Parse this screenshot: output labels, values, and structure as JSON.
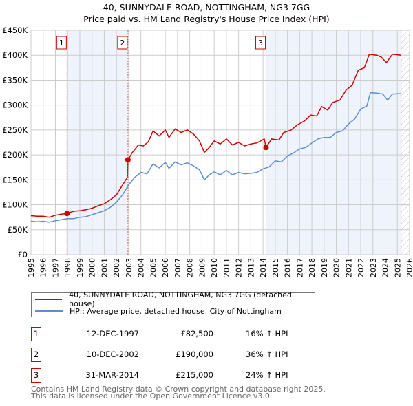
{
  "title_line1": "40, SUNNYDALE ROAD, NOTTINGHAM, NG3 7GG",
  "title_line2": "Price paid vs. HM Land Registry's House Price Index (HPI)",
  "colors": {
    "property": "#cc0000",
    "hpi": "#5b8fd0",
    "shade": "#eef3fc",
    "grid": "#cccccc"
  },
  "chart_data": {
    "type": "line",
    "xlim": [
      1995,
      2026
    ],
    "ylim": [
      0,
      450000
    ],
    "x_ticks": [
      "1995",
      "1996",
      "1997",
      "1998",
      "1999",
      "2000",
      "2001",
      "2002",
      "2003",
      "2004",
      "2005",
      "2006",
      "2007",
      "2008",
      "2009",
      "2010",
      "2011",
      "2012",
      "2013",
      "2014",
      "2015",
      "2016",
      "2017",
      "2018",
      "2019",
      "2020",
      "2021",
      "2022",
      "2023",
      "2024",
      "2025",
      "2026"
    ],
    "y_ticks": [
      {
        "v": 0,
        "label": "£0"
      },
      {
        "v": 50000,
        "label": "£50K"
      },
      {
        "v": 100000,
        "label": "£100K"
      },
      {
        "v": 150000,
        "label": "£150K"
      },
      {
        "v": 200000,
        "label": "£200K"
      },
      {
        "v": 250000,
        "label": "£250K"
      },
      {
        "v": 300000,
        "label": "£300K"
      },
      {
        "v": 350000,
        "label": "£350K"
      },
      {
        "v": 400000,
        "label": "£400K"
      },
      {
        "v": 450000,
        "label": "£450K"
      }
    ],
    "grid": true,
    "shaded_ranges": [
      [
        1997.95,
        2002.94
      ],
      [
        2014.25,
        2025.3
      ]
    ],
    "hatched_from": 2025.3,
    "series": [
      {
        "name": "40, SUNNYDALE ROAD, NOTTINGHAM, NG3 7GG (detached house)",
        "color": "#cc0000",
        "points": [
          [
            1995,
            78000
          ],
          [
            1995.5,
            77000
          ],
          [
            1996,
            77000
          ],
          [
            1996.5,
            75000
          ],
          [
            1997,
            79000
          ],
          [
            1997.5,
            81000
          ],
          [
            1997.95,
            82500
          ],
          [
            1998.5,
            87000
          ],
          [
            1999,
            88000
          ],
          [
            1999.5,
            90000
          ],
          [
            2000,
            93000
          ],
          [
            2000.5,
            98000
          ],
          [
            2001,
            102000
          ],
          [
            2001.5,
            110000
          ],
          [
            2002,
            120000
          ],
          [
            2002.5,
            140000
          ],
          [
            2002.9,
            155000
          ],
          [
            2002.94,
            190000
          ],
          [
            2003.3,
            205000
          ],
          [
            2003.8,
            220000
          ],
          [
            2004.2,
            218000
          ],
          [
            2004.6,
            226000
          ],
          [
            2005,
            248000
          ],
          [
            2005.5,
            238000
          ],
          [
            2006,
            250000
          ],
          [
            2006.3,
            235000
          ],
          [
            2006.8,
            252000
          ],
          [
            2007.3,
            245000
          ],
          [
            2007.8,
            250000
          ],
          [
            2008.3,
            242000
          ],
          [
            2008.8,
            228000
          ],
          [
            2009.2,
            205000
          ],
          [
            2009.6,
            215000
          ],
          [
            2010,
            228000
          ],
          [
            2010.5,
            222000
          ],
          [
            2011,
            232000
          ],
          [
            2011.5,
            220000
          ],
          [
            2012,
            225000
          ],
          [
            2012.5,
            218000
          ],
          [
            2013,
            222000
          ],
          [
            2013.5,
            224000
          ],
          [
            2014.1,
            232000
          ],
          [
            2014.25,
            215000
          ],
          [
            2014.7,
            232000
          ],
          [
            2015.3,
            230000
          ],
          [
            2015.7,
            245000
          ],
          [
            2016.3,
            250000
          ],
          [
            2016.8,
            260000
          ],
          [
            2017.4,
            268000
          ],
          [
            2017.9,
            280000
          ],
          [
            2018.4,
            278000
          ],
          [
            2018.8,
            297000
          ],
          [
            2019.3,
            290000
          ],
          [
            2019.7,
            305000
          ],
          [
            2020.3,
            310000
          ],
          [
            2020.8,
            330000
          ],
          [
            2021.3,
            340000
          ],
          [
            2021.8,
            370000
          ],
          [
            2022.3,
            375000
          ],
          [
            2022.7,
            402000
          ],
          [
            2023.3,
            400000
          ],
          [
            2023.7,
            396000
          ],
          [
            2024.1,
            385000
          ],
          [
            2024.6,
            402000
          ],
          [
            2025.3,
            400000
          ]
        ]
      },
      {
        "name": "HPI: Average price, detached house, City of Nottingham",
        "color": "#5b8fd0",
        "points": [
          [
            1995,
            67000
          ],
          [
            1995.5,
            66000
          ],
          [
            1996,
            67000
          ],
          [
            1996.5,
            65000
          ],
          [
            1997,
            68000
          ],
          [
            1997.5,
            70000
          ],
          [
            1998,
            72000
          ],
          [
            1998.5,
            72000
          ],
          [
            1999,
            75000
          ],
          [
            1999.5,
            76000
          ],
          [
            2000,
            80000
          ],
          [
            2000.5,
            84000
          ],
          [
            2001,
            88000
          ],
          [
            2001.5,
            95000
          ],
          [
            2002,
            105000
          ],
          [
            2002.5,
            120000
          ],
          [
            2003,
            140000
          ],
          [
            2003.5,
            155000
          ],
          [
            2004,
            165000
          ],
          [
            2004.5,
            162000
          ],
          [
            2005,
            182000
          ],
          [
            2005.5,
            174000
          ],
          [
            2006,
            185000
          ],
          [
            2006.3,
            173000
          ],
          [
            2006.8,
            186000
          ],
          [
            2007.3,
            180000
          ],
          [
            2007.8,
            184000
          ],
          [
            2008.3,
            178000
          ],
          [
            2008.8,
            170000
          ],
          [
            2009.2,
            150000
          ],
          [
            2009.6,
            160000
          ],
          [
            2010,
            166000
          ],
          [
            2010.5,
            160000
          ],
          [
            2011,
            169000
          ],
          [
            2011.5,
            160000
          ],
          [
            2012,
            165000
          ],
          [
            2012.5,
            162000
          ],
          [
            2013,
            163000
          ],
          [
            2013.5,
            165000
          ],
          [
            2014,
            172000
          ],
          [
            2014.5,
            176000
          ],
          [
            2015,
            188000
          ],
          [
            2015.5,
            186000
          ],
          [
            2016,
            198000
          ],
          [
            2016.5,
            204000
          ],
          [
            2017,
            212000
          ],
          [
            2017.5,
            215000
          ],
          [
            2018,
            224000
          ],
          [
            2018.5,
            232000
          ],
          [
            2019,
            235000
          ],
          [
            2019.5,
            235000
          ],
          [
            2020,
            245000
          ],
          [
            2020.5,
            248000
          ],
          [
            2021,
            262000
          ],
          [
            2021.5,
            272000
          ],
          [
            2022,
            292000
          ],
          [
            2022.5,
            298000
          ],
          [
            2022.8,
            325000
          ],
          [
            2023.3,
            324000
          ],
          [
            2023.8,
            322000
          ],
          [
            2024.2,
            310000
          ],
          [
            2024.6,
            322000
          ],
          [
            2025.3,
            323000
          ]
        ]
      }
    ],
    "sales": [
      {
        "n": "1",
        "x": 1997.95,
        "y": 82500
      },
      {
        "n": "2",
        "x": 2002.94,
        "y": 190000
      },
      {
        "n": "3",
        "x": 2014.25,
        "y": 215000
      }
    ]
  },
  "legend": {
    "property": "40, SUNNYDALE ROAD, NOTTINGHAM, NG3 7GG (detached house)",
    "hpi": "HPI: Average price, detached house, City of Nottingham"
  },
  "sales_table": [
    {
      "n": "1",
      "date": "12-DEC-1997",
      "price": "£82,500",
      "hpi": "16% ↑ HPI"
    },
    {
      "n": "2",
      "date": "10-DEC-2002",
      "price": "£190,000",
      "hpi": "36% ↑ HPI"
    },
    {
      "n": "3",
      "date": "31-MAR-2014",
      "price": "£215,000",
      "hpi": "24% ↑ HPI"
    }
  ],
  "footer_line1": "Contains HM Land Registry data © Crown copyright and database right 2025.",
  "footer_line2": "This data is licensed under the Open Government Licence v3.0."
}
